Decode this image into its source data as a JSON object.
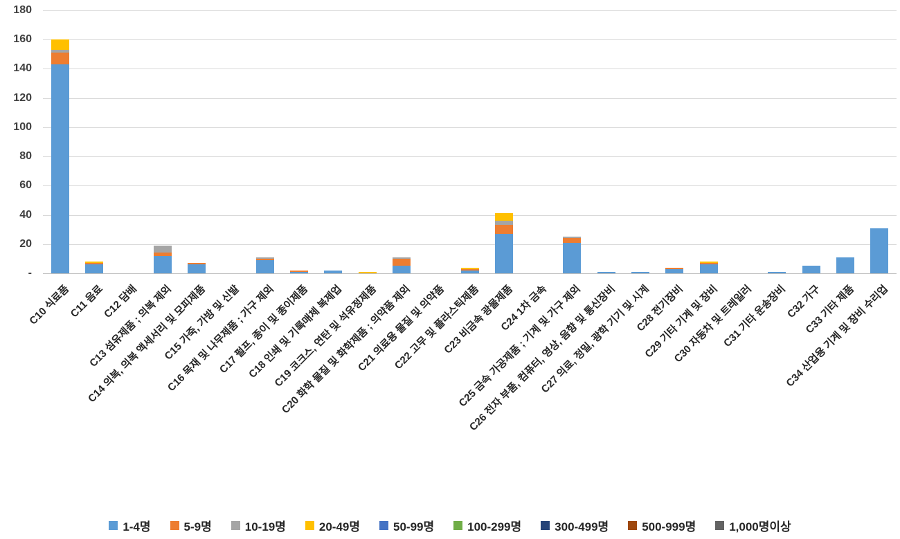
{
  "chart_data": {
    "type": "bar",
    "stacked": true,
    "title": "",
    "xlabel": "",
    "ylabel": "",
    "ylim": [
      0,
      180
    ],
    "ytick_step": 20,
    "ytick_labels": [
      "-",
      "20",
      "40",
      "60",
      "80",
      "100",
      "120",
      "140",
      "160",
      "180"
    ],
    "grid": true,
    "legend_position": "bottom",
    "categories": [
      "C10 식료품",
      "C11 음료",
      "C12 담배",
      "C13 섬유제품 ; 의복 제외",
      "C14 의복, 의복 액세서리 및 모피제품",
      "C15 가죽, 가방 및 신발",
      "C16 목재 및 나무제품 ; 가구 제외",
      "C17 펄프, 종이 및 종이제품",
      "C18 인쇄 및 기록매체 복제업",
      "C19 코크스, 연탄 및 석유정제품",
      "C20 화학 물질 및 화학제품 ; 의약품 제외",
      "C21 의료용 물질 및 의약품",
      "C22 고무 및 플라스틱제품",
      "C23 비금속 광물제품",
      "C24 1차 금속",
      "C25 금속 가공제품 ; 기계 및 가구 제외",
      "C26 전자 부품, 컴퓨터, 영상, 음향 및 통신장비",
      "C27 의료, 정밀, 광학 기기 및 시계",
      "C28 전기장비",
      "C29 기타 기계 및 장비",
      "C30 자동차 및 트레일러",
      "C31 기타 운송장비",
      "C32 가구",
      "C33 기타 제품",
      "C34 산업용 기계 및 장비 수리업"
    ],
    "series": [
      {
        "name": "1-4명",
        "color": "#5B9BD5",
        "values": [
          143,
          6,
          0,
          12,
          6,
          0,
          9,
          1,
          2,
          0,
          5,
          0,
          2,
          27,
          0,
          21,
          1,
          1,
          3,
          6,
          0,
          1,
          5,
          11,
          31
        ]
      },
      {
        "name": "5-9명",
        "color": "#ED7D31",
        "values": [
          8,
          1,
          0,
          2,
          1,
          0,
          1,
          1,
          0,
          0,
          5,
          0,
          1,
          6,
          0,
          3,
          0,
          0,
          1,
          1,
          0,
          0,
          0,
          0,
          0
        ]
      },
      {
        "name": "10-19명",
        "color": "#A5A5A5",
        "values": [
          2,
          0,
          0,
          5,
          0,
          0,
          1,
          0,
          0,
          0,
          1,
          0,
          0,
          3,
          0,
          1,
          0,
          0,
          0,
          0,
          0,
          0,
          0,
          0,
          0
        ]
      },
      {
        "name": "20-49명",
        "color": "#FFC000",
        "values": [
          7,
          1,
          0,
          0,
          0,
          0,
          0,
          0,
          0,
          1,
          0,
          0,
          1,
          5,
          0,
          0,
          0,
          0,
          0,
          1,
          0,
          0,
          0,
          0,
          0
        ]
      },
      {
        "name": "50-99명",
        "color": "#4472C4",
        "values": [
          0,
          0,
          0,
          0,
          0,
          0,
          0,
          0,
          0,
          0,
          0,
          0,
          0,
          0,
          0,
          0,
          0,
          0,
          0,
          0,
          0,
          0,
          0,
          0,
          0
        ]
      },
      {
        "name": "100-299명",
        "color": "#70AD47",
        "values": [
          0,
          0,
          0,
          0,
          0,
          0,
          0,
          0,
          0,
          0,
          0,
          0,
          0,
          0,
          0,
          0,
          0,
          0,
          0,
          0,
          0,
          0,
          0,
          0,
          0
        ]
      },
      {
        "name": "300-499명",
        "color": "#264478",
        "values": [
          0,
          0,
          0,
          0,
          0,
          0,
          0,
          0,
          0,
          0,
          0,
          0,
          0,
          0,
          0,
          0,
          0,
          0,
          0,
          0,
          0,
          0,
          0,
          0,
          0
        ]
      },
      {
        "name": "500-999명",
        "color": "#9E480E",
        "values": [
          0,
          0,
          0,
          0,
          0,
          0,
          0,
          0,
          0,
          0,
          0,
          0,
          0,
          0,
          0,
          0,
          0,
          0,
          0,
          0,
          0,
          0,
          0,
          0,
          0
        ]
      },
      {
        "name": "1,000명이상",
        "color": "#636363",
        "values": [
          0,
          0,
          0,
          0,
          0,
          0,
          0,
          0,
          0,
          0,
          0,
          0,
          0,
          0,
          0,
          0,
          0,
          0,
          0,
          0,
          0,
          0,
          0,
          0,
          0
        ]
      }
    ]
  }
}
